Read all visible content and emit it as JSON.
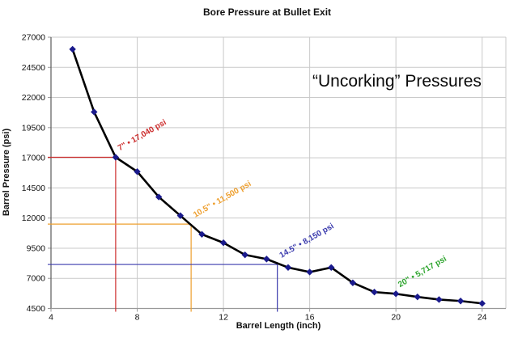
{
  "header": {
    "title": "Bore Pressure at Bullet Exit"
  },
  "big_annotation": "“Uncorking” Pressures",
  "chart_data": {
    "type": "line",
    "title": "Bore Pressure at Bullet Exit",
    "xlabel": "Barrel Length (inch)",
    "ylabel": "Barrel Pressure (psi)",
    "xlim": [
      4,
      25.1
    ],
    "ylim": [
      4500,
      27000
    ],
    "x_ticks": [
      4,
      8,
      12,
      16,
      20,
      24
    ],
    "y_ticks": [
      4500,
      7000,
      9500,
      12000,
      14500,
      17000,
      19500,
      22000,
      24500,
      27000
    ],
    "grid": true,
    "legend": "none",
    "x": [
      5,
      6,
      7,
      8,
      9,
      10,
      11,
      12,
      13,
      14,
      15,
      16,
      17,
      18,
      19,
      20,
      21,
      22,
      23,
      24
    ],
    "y": [
      26000,
      20800,
      17040,
      15850,
      13750,
      12200,
      10650,
      9950,
      8950,
      8600,
      7900,
      7520,
      7900,
      6630,
      5860,
      5717,
      5460,
      5240,
      5120,
      4920
    ],
    "line_color": "#000000",
    "marker_color": "#1a1a8c",
    "grid_color": "#c9c9c9",
    "axis_color": "#666666",
    "baseline_color": "#999999",
    "annotations": [
      {
        "x": 7,
        "y": 17040,
        "label": "7\" • 17,040 psi",
        "color": "#cc2b2b",
        "ref_lines": true
      },
      {
        "x": 10.5,
        "y": 11500,
        "label": "10.5\" • 11,500 psi",
        "color": "#ee9f2e",
        "ref_lines": true
      },
      {
        "x": 14.5,
        "y": 8150,
        "label": "14.5\" • 8,150 psi",
        "color": "#3a3aad",
        "ref_lines": true
      },
      {
        "x": 20,
        "y": 5717,
        "label": "20\" • 5,717 psi",
        "color": "#2ea52e",
        "ref_lines": false
      }
    ]
  }
}
